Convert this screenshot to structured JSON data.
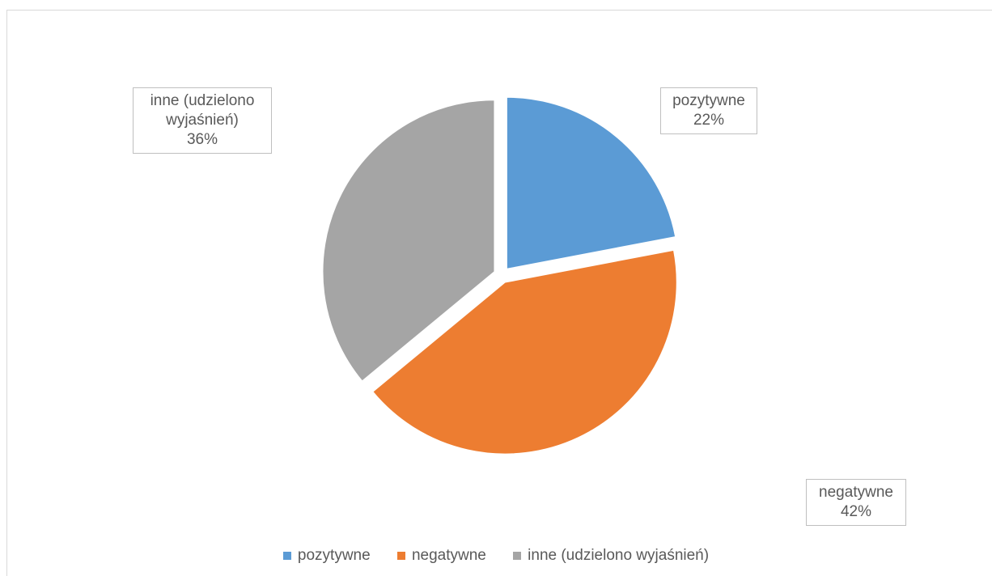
{
  "chart_data": {
    "type": "pie",
    "title": "",
    "series": [
      {
        "name": "pozytywne",
        "value": 22,
        "label": "22%",
        "color": "#5b9bd5"
      },
      {
        "name": "negatywne",
        "value": 42,
        "label": "42%",
        "color": "#ed7d31"
      },
      {
        "name": "inne (udzielono wyjaśnień)",
        "value": 36,
        "label": "36%",
        "color": "#a5a5a5"
      }
    ],
    "legend_position": "bottom",
    "exploded": true
  }
}
